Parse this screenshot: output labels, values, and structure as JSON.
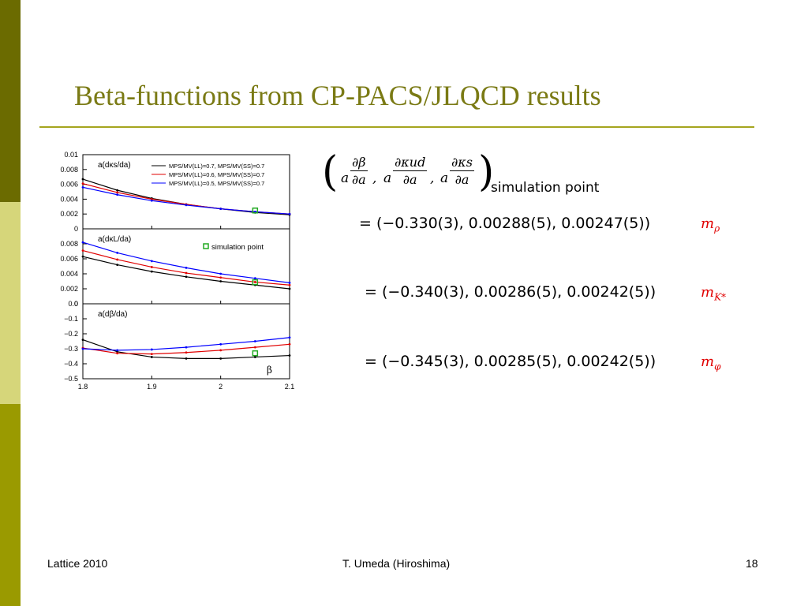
{
  "slide": {
    "title": "Beta-functions from CP-PACS/JLQCD results",
    "footer_left": "Lattice 2010",
    "footer_center": "T. Umeda (Hiroshima)",
    "footer_right": "18"
  },
  "formula": {
    "prefix_a": "a",
    "frac1_num": "∂β",
    "frac1_den": "∂a",
    "frac2_num": "∂κud",
    "frac2_den": "∂a",
    "frac3_num": "∂κs",
    "frac3_den": "∂a",
    "comma": ",",
    "subscript": "simulation point"
  },
  "results": [
    {
      "values": "= (−0.330(3), 0.00288(5), 0.00247(5))",
      "mass_label": "m",
      "mass_sub": "ρ"
    },
    {
      "values": "= (−0.340(3), 0.00286(5), 0.00242(5))",
      "mass_label": "m",
      "mass_sub": "K*"
    },
    {
      "values": "= (−0.345(3), 0.00285(5), 0.00242(5))",
      "mass_label": "m",
      "mass_sub": "φ"
    }
  ],
  "chart_data": {
    "type": "line",
    "x_range": [
      1.8,
      2.1
    ],
    "x_ticks": [
      "1.8",
      "1.9",
      "2",
      "2.1"
    ],
    "x_tick_values": [
      1.8,
      1.9,
      2.0,
      2.1
    ],
    "x_label": "β",
    "series_colors": [
      "#000000",
      "#e00000",
      "#0000ff"
    ],
    "legend": [
      "MPS/MV(LL)=0.7, MPS/MV(SS)=0.7",
      "MPS/MV(LL)=0.6, MPS/MV(SS)=0.7",
      "MPS/MV(LL)=0.5, MPS/MV(SS)=0.7"
    ],
    "sim_legend": "simulation point",
    "sim_point_color": "#22aa22",
    "panels": [
      {
        "label": "a(dκs/da)",
        "ylim": [
          0,
          0.01
        ],
        "y_ticks": [
          "0.01",
          "0.008",
          "0.006",
          "0.004",
          "0.002",
          "0"
        ],
        "y_tick_values": [
          0.01,
          0.008,
          0.006,
          0.004,
          0.002,
          0
        ],
        "x": [
          1.8,
          1.85,
          1.9,
          1.95,
          2.0,
          2.05,
          2.1
        ],
        "series": [
          {
            "values": [
              0.0067,
              0.0052,
              0.0041,
              0.0033,
              0.0027,
              0.0022,
              0.0019
            ]
          },
          {
            "values": [
              0.0061,
              0.0049,
              0.004,
              0.0033,
              0.0027,
              0.0023,
              0.002
            ]
          },
          {
            "values": [
              0.0056,
              0.0046,
              0.0038,
              0.0032,
              0.0027,
              0.0023,
              0.002
            ]
          }
        ],
        "sim_point": {
          "x": 2.05,
          "y": 0.00247
        }
      },
      {
        "label": "a(dκL/da)",
        "ylim": [
          0,
          0.01
        ],
        "y_ticks": [
          "0.008",
          "0.006",
          "0.004",
          "0.002",
          "0"
        ],
        "y_tick_values": [
          0.008,
          0.006,
          0.004,
          0.002,
          0
        ],
        "x": [
          1.8,
          1.85,
          1.9,
          1.95,
          2.0,
          2.05,
          2.1
        ],
        "series": [
          {
            "values": [
              0.0063,
              0.0052,
              0.0043,
              0.0036,
              0.003,
              0.0025,
              0.002
            ]
          },
          {
            "values": [
              0.0071,
              0.0059,
              0.0049,
              0.0041,
              0.0035,
              0.0029,
              0.0025
            ]
          },
          {
            "values": [
              0.0082,
              0.0068,
              0.0057,
              0.0048,
              0.004,
              0.0034,
              0.0028
            ]
          }
        ],
        "sim_point": {
          "x": 2.05,
          "y": 0.00288
        }
      },
      {
        "label": "a(dβ/da)",
        "ylim": [
          -0.5,
          0.0
        ],
        "y_ticks": [
          "0.0",
          "−0.1",
          "−0.2",
          "−0.3",
          "−0.4",
          "−0.5"
        ],
        "y_tick_values": [
          0.0,
          -0.1,
          -0.2,
          -0.3,
          -0.4,
          -0.5
        ],
        "x": [
          1.8,
          1.85,
          1.9,
          1.95,
          2.0,
          2.05,
          2.1
        ],
        "series": [
          {
            "values": [
              -0.24,
              -0.32,
              -0.355,
              -0.365,
              -0.365,
              -0.355,
              -0.345
            ]
          },
          {
            "values": [
              -0.295,
              -0.33,
              -0.335,
              -0.325,
              -0.31,
              -0.29,
              -0.27
            ]
          },
          {
            "values": [
              -0.3,
              -0.31,
              -0.305,
              -0.29,
              -0.27,
              -0.25,
              -0.225
            ]
          }
        ],
        "sim_point": {
          "x": 2.05,
          "y": -0.33
        }
      }
    ]
  }
}
